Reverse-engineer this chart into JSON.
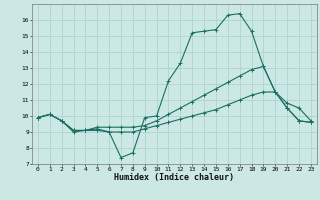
{
  "xlabel": "Humidex (Indice chaleur)",
  "background_color": "#cce8e4",
  "grid_color": "#aacfcb",
  "line_color": "#1a6e62",
  "xlim": [
    -0.5,
    23.5
  ],
  "ylim": [
    7,
    17
  ],
  "yticks": [
    7,
    8,
    9,
    10,
    11,
    12,
    13,
    14,
    15,
    16
  ],
  "xticks": [
    0,
    1,
    2,
    3,
    4,
    5,
    6,
    7,
    8,
    9,
    10,
    11,
    12,
    13,
    14,
    15,
    16,
    17,
    18,
    19,
    20,
    21,
    22,
    23
  ],
  "line1_x": [
    0,
    1,
    2,
    3,
    4,
    5,
    6,
    7,
    8,
    9,
    10,
    11,
    12,
    13,
    14,
    15,
    16,
    17,
    18,
    19,
    20,
    21,
    22,
    23
  ],
  "line1_y": [
    9.9,
    10.1,
    9.7,
    9.0,
    9.1,
    9.1,
    9.0,
    7.4,
    7.7,
    9.9,
    10.0,
    12.2,
    13.3,
    15.2,
    15.3,
    15.4,
    16.3,
    16.4,
    15.3,
    13.1,
    11.5,
    10.8,
    10.5,
    9.7
  ],
  "line2_x": [
    0,
    1,
    2,
    3,
    4,
    5,
    6,
    7,
    8,
    9,
    10,
    11,
    12,
    13,
    14,
    15,
    16,
    17,
    18,
    19,
    20,
    21,
    22,
    23
  ],
  "line2_y": [
    9.9,
    10.1,
    9.7,
    9.1,
    9.1,
    9.3,
    9.3,
    9.3,
    9.3,
    9.4,
    9.7,
    10.1,
    10.5,
    10.9,
    11.3,
    11.7,
    12.1,
    12.5,
    12.9,
    13.1,
    11.5,
    10.5,
    9.7,
    9.6
  ],
  "line3_x": [
    0,
    1,
    2,
    3,
    4,
    5,
    6,
    7,
    8,
    9,
    10,
    11,
    12,
    13,
    14,
    15,
    16,
    17,
    18,
    19,
    20,
    21,
    22,
    23
  ],
  "line3_y": [
    9.9,
    10.1,
    9.7,
    9.1,
    9.1,
    9.2,
    9.0,
    9.0,
    9.0,
    9.2,
    9.4,
    9.6,
    9.8,
    10.0,
    10.2,
    10.4,
    10.7,
    11.0,
    11.3,
    11.5,
    11.5,
    10.5,
    9.7,
    9.6
  ],
  "ylabel_fontsize": 5,
  "xlabel_fontsize": 6,
  "tick_fontsize": 4.5
}
